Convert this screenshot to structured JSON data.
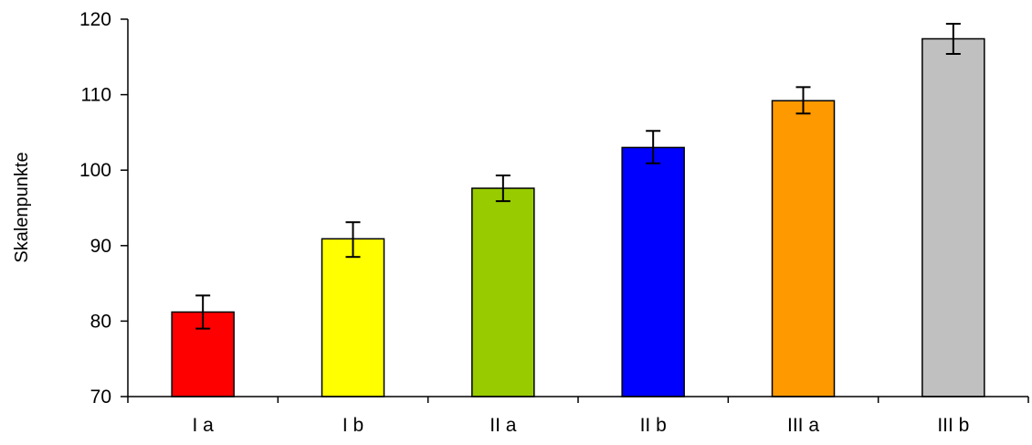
{
  "chart_data": {
    "type": "bar",
    "title": "",
    "xlabel": "",
    "ylabel": "Skalenpunkte",
    "ylim": [
      70,
      120
    ],
    "yticks": [
      70,
      80,
      90,
      100,
      110,
      120
    ],
    "categories": [
      "I a",
      "I b",
      "II a",
      "II b",
      "III a",
      "III b"
    ],
    "values": [
      81.2,
      90.9,
      97.6,
      103.0,
      109.2,
      117.4
    ],
    "error_low": [
      79.0,
      88.5,
      95.9,
      100.9,
      107.5,
      115.4
    ],
    "error_high": [
      83.4,
      93.1,
      99.3,
      105.2,
      111.0,
      119.4
    ],
    "colors": [
      "#ff0000",
      "#ffff00",
      "#99cc00",
      "#0000ff",
      "#ff9900",
      "#c0c0c0"
    ],
    "grid": false,
    "legend": "none"
  }
}
